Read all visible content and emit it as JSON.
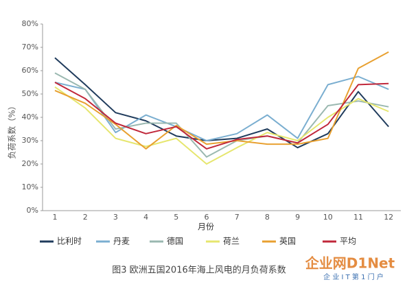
{
  "chart_data": {
    "type": "line",
    "y_label": "负荷系数（%）",
    "x_label": "月份",
    "caption": "图3 欧洲五国2016年海上风电的月负荷系数",
    "watermark": "企业网D1Net",
    "watermark_sub": "企 业 I T 第 1 门 户",
    "categories": [
      "1",
      "2",
      "3",
      "4",
      "5",
      "6",
      "7",
      "8",
      "9",
      "10",
      "11",
      "12"
    ],
    "ylim": [
      0,
      80
    ],
    "yticks": [
      {
        "value": 0,
        "label": "0%"
      },
      {
        "value": 10,
        "label": "10%"
      },
      {
        "value": 20,
        "label": "20%"
      },
      {
        "value": 30,
        "label": "30%"
      },
      {
        "value": 40,
        "label": "40%"
      },
      {
        "value": 50,
        "label": "50%"
      },
      {
        "value": 60,
        "label": "60%"
      },
      {
        "value": 70,
        "label": "70%"
      },
      {
        "value": 80,
        "label": "80%"
      }
    ],
    "grid": false,
    "series": [
      {
        "name": "比利时",
        "color": "#1f3b5c",
        "values": [
          65.5,
          54,
          42,
          38.5,
          32,
          30,
          31,
          35,
          27,
          33,
          51,
          36
        ]
      },
      {
        "name": "丹麦",
        "color": "#7aaed0",
        "values": [
          55,
          52,
          33.5,
          41,
          36,
          30,
          33,
          41,
          31,
          54,
          57.5,
          52
        ]
      },
      {
        "name": "德国",
        "color": "#9ab8b0",
        "values": [
          59,
          52,
          35,
          37.5,
          37.5,
          23,
          30,
          32,
          29,
          45,
          47,
          44.5
        ]
      },
      {
        "name": "荷兰",
        "color": "#e6e66e",
        "values": [
          53,
          44,
          31,
          27.5,
          31,
          20,
          27,
          33.5,
          30,
          40,
          48,
          42.5
        ]
      },
      {
        "name": "英国",
        "color": "#e8a030",
        "values": [
          51.5,
          46,
          37,
          26.5,
          36.5,
          28.5,
          30,
          28.5,
          28.5,
          31,
          61,
          68
        ]
      },
      {
        "name": "平均",
        "color": "#c0273a",
        "values": [
          55,
          48,
          37.5,
          33,
          36,
          26.5,
          30.5,
          32,
          29,
          37,
          54,
          54.5
        ]
      }
    ]
  }
}
